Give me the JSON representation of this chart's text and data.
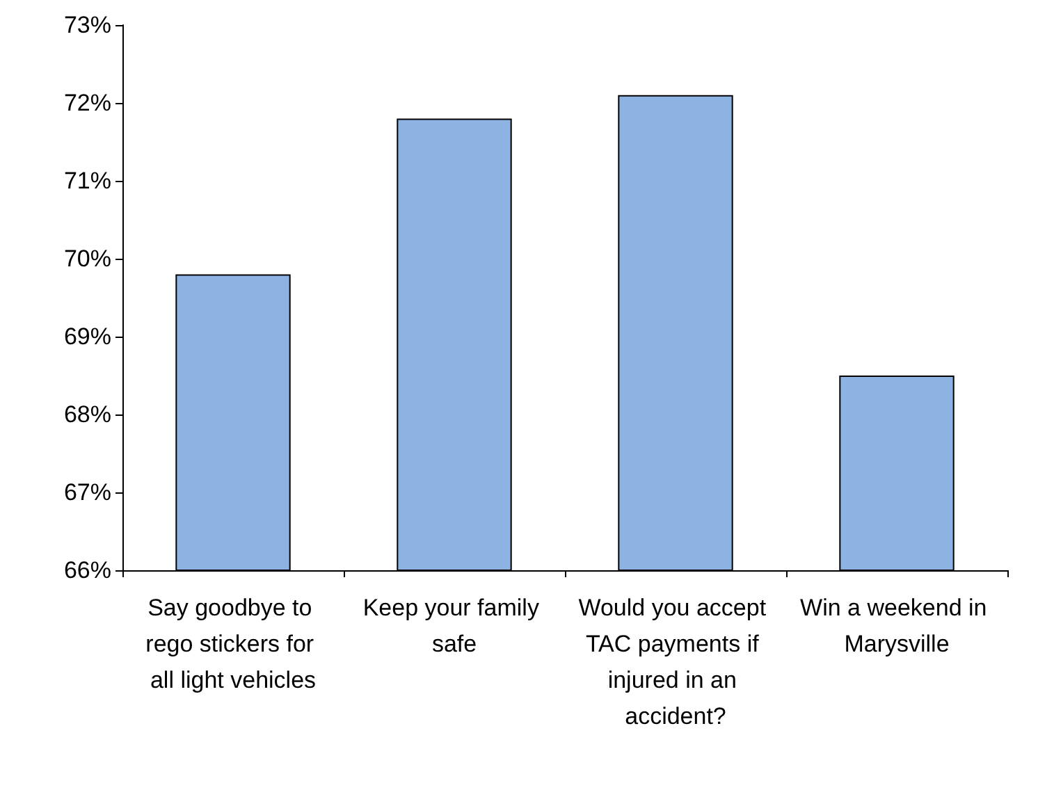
{
  "chart_data": {
    "type": "bar",
    "categories": [
      "Say goodbye to rego stickers for all light vehicles",
      "Keep your family safe",
      "Would you accept TAC payments if injured in an accident?",
      "Win a weekend in Marysville"
    ],
    "values": [
      69.8,
      71.8,
      72.1,
      68.5
    ],
    "color": "#8db3e2",
    "ylim": [
      66,
      73
    ],
    "yticks": [
      {
        "value": 66,
        "label": "66%"
      },
      {
        "value": 67,
        "label": "67%"
      },
      {
        "value": 68,
        "label": "68%"
      },
      {
        "value": 69,
        "label": "69%"
      },
      {
        "value": 70,
        "label": "70%"
      },
      {
        "value": 71,
        "label": "71%"
      },
      {
        "value": 72,
        "label": "72%"
      },
      {
        "value": 73,
        "label": "73%"
      }
    ],
    "grid": false
  }
}
